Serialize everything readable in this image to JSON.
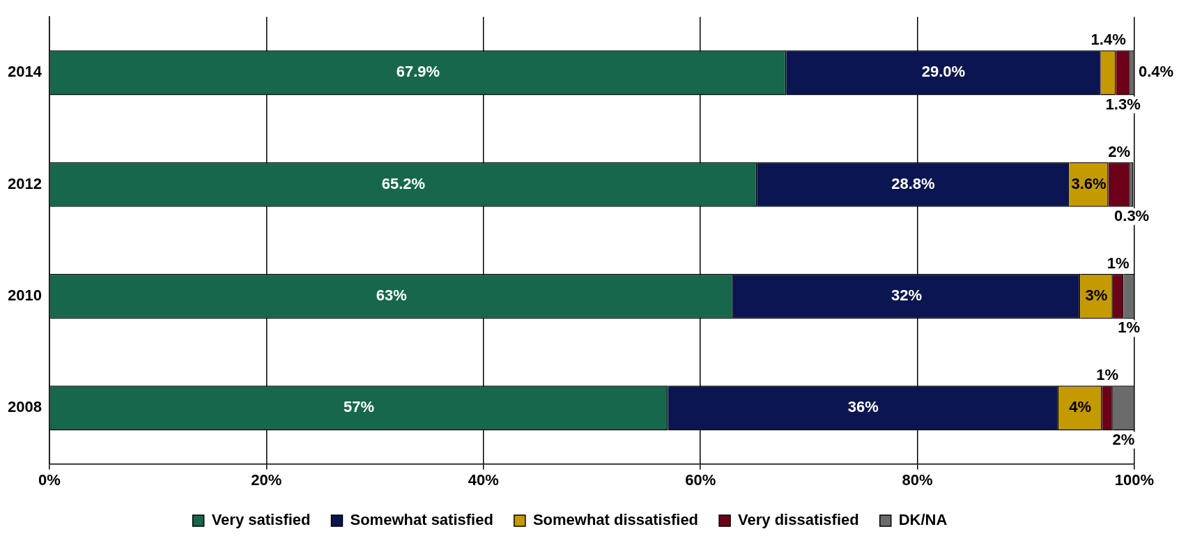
{
  "chart_data": {
    "type": "bar",
    "orientation": "horizontal",
    "stacked": true,
    "categories": [
      "2014",
      "2012",
      "2010",
      "2008"
    ],
    "series": [
      {
        "name": "Very satisfied",
        "color": "#16674b",
        "values": [
          67.9,
          65.2,
          63,
          57
        ],
        "value_labels": [
          "67.9%",
          "65.2%",
          "63%",
          "57%"
        ]
      },
      {
        "name": "Somewhat satisfied",
        "color": "#0b1650",
        "values": [
          29.0,
          28.8,
          32,
          36
        ],
        "value_labels": [
          "29.0%",
          "28.8%",
          "32%",
          "36%"
        ]
      },
      {
        "name": "Somewhat dissatisfied",
        "color": "#c49a00",
        "values": [
          1.4,
          3.6,
          3,
          4
        ],
        "value_labels": [
          "1.4%",
          "3.6%",
          "3%",
          "4%"
        ]
      },
      {
        "name": "Very dissatisfied",
        "color": "#6b0018",
        "values": [
          1.3,
          2,
          1,
          1
        ],
        "value_labels": [
          "1.3%",
          "2%",
          "1%",
          "1%"
        ]
      },
      {
        "name": "DK/NA",
        "color": "#6b6b6b",
        "values": [
          0.4,
          0.3,
          1,
          2
        ],
        "value_labels": [
          "0.4%",
          "0.3%",
          "1%",
          "2%"
        ]
      }
    ],
    "xlim": [
      0,
      100
    ],
    "xticks": [
      {
        "value": 0,
        "label": "0%"
      },
      {
        "value": 20,
        "label": "20%"
      },
      {
        "value": 40,
        "label": "40%"
      },
      {
        "value": 60,
        "label": "60%"
      },
      {
        "value": 80,
        "label": "80%"
      },
      {
        "value": 100,
        "label": "100%"
      }
    ],
    "grid": "x",
    "legend": "bottom"
  }
}
